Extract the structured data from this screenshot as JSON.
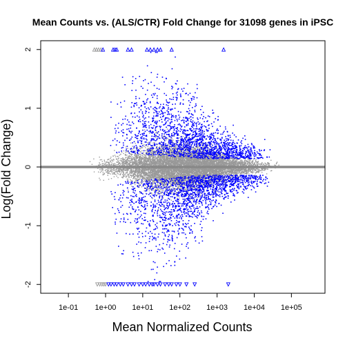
{
  "chart_data": {
    "type": "scatter",
    "title": "Mean Counts vs. (ALS/CTR) Fold Change for 31098 genes in iPSC",
    "xlabel": "Mean Normalized Counts",
    "ylabel": "Log(Fold Change)",
    "x_scale": "log10",
    "xlim": [
      0.018,
      800000
    ],
    "ylim": [
      -2.15,
      2.15
    ],
    "x_ticks": [
      {
        "value": 0.1,
        "label": "1e-01"
      },
      {
        "value": 1,
        "label": "1e+00"
      },
      {
        "value": 10,
        "label": "1e+01"
      },
      {
        "value": 100,
        "label": "1e+02"
      },
      {
        "value": 1000,
        "label": "1e+03"
      },
      {
        "value": 10000,
        "label": "1e+04"
      },
      {
        "value": 100000,
        "label": "1e+05"
      }
    ],
    "y_ticks": [
      {
        "value": -2,
        "label": "-2"
      },
      {
        "value": -1,
        "label": "-1"
      },
      {
        "value": 0,
        "label": "0"
      },
      {
        "value": 1,
        "label": "1"
      },
      {
        "value": 2,
        "label": "2"
      }
    ],
    "reference_line": {
      "y": 0,
      "color": "#888888"
    },
    "series": [
      {
        "role": "non-significant",
        "color": "#999999",
        "marker": "dot",
        "approx_count": 25000,
        "x_range": [
          0.05,
          400000
        ],
        "y_spread": "dense band around 0, widest (about ±0.4) near 10–1000 counts"
      },
      {
        "role": "significant",
        "color": "#0000ff",
        "marker": "dot",
        "approx_count": 6000,
        "x_range": [
          1,
          50000
        ],
        "y_range": [
          -2,
          2
        ],
        "y_spread": "two clouds above and below the gray band, magnitude about 0.3–1.5"
      }
    ],
    "clipped_points": [
      {
        "y": 2,
        "x": 0.5,
        "color": "#999999",
        "marker": "triangle-up"
      },
      {
        "y": 2,
        "x": 0.57,
        "color": "#999999",
        "marker": "triangle-up"
      },
      {
        "y": 2,
        "x": 0.65,
        "color": "#999999",
        "marker": "triangle-up"
      },
      {
        "y": 2,
        "x": 0.75,
        "color": "#999999",
        "marker": "triangle-up"
      },
      {
        "y": 2,
        "x": 0.85,
        "color": "#0000ff",
        "marker": "triangle-up"
      },
      {
        "y": 2,
        "x": 1.6,
        "color": "#0000ff",
        "marker": "triangle-up"
      },
      {
        "y": 2,
        "x": 1.8,
        "color": "#0000ff",
        "marker": "triangle-up"
      },
      {
        "y": 2,
        "x": 2.0,
        "color": "#0000ff",
        "marker": "triangle-up"
      },
      {
        "y": 2,
        "x": 4.0,
        "color": "#0000ff",
        "marker": "triangle-up"
      },
      {
        "y": 2,
        "x": 5.0,
        "color": "#0000ff",
        "marker": "triangle-up"
      },
      {
        "y": 2,
        "x": 13,
        "color": "#0000ff",
        "marker": "triangle-up"
      },
      {
        "y": 2,
        "x": 16,
        "color": "#0000ff",
        "marker": "triangle-up"
      },
      {
        "y": 2,
        "x": 20,
        "color": "#0000ff",
        "marker": "triangle-up"
      },
      {
        "y": 2,
        "x": 25,
        "color": "#0000ff",
        "marker": "triangle-up"
      },
      {
        "y": 2,
        "x": 30,
        "color": "#0000ff",
        "marker": "triangle-up"
      },
      {
        "y": 2,
        "x": 60,
        "color": "#0000ff",
        "marker": "triangle-up"
      },
      {
        "y": 2,
        "x": 1500,
        "color": "#0000ff",
        "marker": "triangle-up"
      },
      {
        "y": -2,
        "x": 0.6,
        "color": "#999999",
        "marker": "triangle-down"
      },
      {
        "y": -2,
        "x": 0.7,
        "color": "#999999",
        "marker": "triangle-down"
      },
      {
        "y": -2,
        "x": 0.8,
        "color": "#999999",
        "marker": "triangle-down"
      },
      {
        "y": -2,
        "x": 0.9,
        "color": "#999999",
        "marker": "triangle-down"
      },
      {
        "y": -2,
        "x": 1.0,
        "color": "#999999",
        "marker": "triangle-down"
      },
      {
        "y": -2,
        "x": 1.2,
        "color": "#0000ff",
        "marker": "triangle-down"
      },
      {
        "y": -2,
        "x": 1.4,
        "color": "#0000ff",
        "marker": "triangle-down"
      },
      {
        "y": -2,
        "x": 1.7,
        "color": "#0000ff",
        "marker": "triangle-down"
      },
      {
        "y": -2,
        "x": 2.0,
        "color": "#0000ff",
        "marker": "triangle-down"
      },
      {
        "y": -2,
        "x": 2.5,
        "color": "#0000ff",
        "marker": "triangle-down"
      },
      {
        "y": -2,
        "x": 3.0,
        "color": "#0000ff",
        "marker": "triangle-down"
      },
      {
        "y": -2,
        "x": 4.0,
        "color": "#0000ff",
        "marker": "triangle-down"
      },
      {
        "y": -2,
        "x": 5.0,
        "color": "#0000ff",
        "marker": "triangle-down"
      },
      {
        "y": -2,
        "x": 6.0,
        "color": "#0000ff",
        "marker": "triangle-down"
      },
      {
        "y": -2,
        "x": 8.0,
        "color": "#0000ff",
        "marker": "triangle-down"
      },
      {
        "y": -2,
        "x": 10,
        "color": "#0000ff",
        "marker": "triangle-down"
      },
      {
        "y": -2,
        "x": 12,
        "color": "#0000ff",
        "marker": "triangle-down"
      },
      {
        "y": -2,
        "x": 15,
        "color": "#0000ff",
        "marker": "triangle-down"
      },
      {
        "y": -2,
        "x": 18,
        "color": "#0000ff",
        "marker": "triangle-down"
      },
      {
        "y": -2,
        "x": 20,
        "color": "#0000ff",
        "marker": "triangle-down"
      },
      {
        "y": -2,
        "x": 25,
        "color": "#0000ff",
        "marker": "triangle-down"
      },
      {
        "y": -2,
        "x": 30,
        "color": "#0000ff",
        "marker": "triangle-down"
      },
      {
        "y": -2,
        "x": 40,
        "color": "#0000ff",
        "marker": "triangle-down"
      },
      {
        "y": -2,
        "x": 50,
        "color": "#0000ff",
        "marker": "triangle-down"
      },
      {
        "y": -2,
        "x": 60,
        "color": "#0000ff",
        "marker": "triangle-down"
      },
      {
        "y": -2,
        "x": 80,
        "color": "#0000ff",
        "marker": "triangle-down"
      },
      {
        "y": -2,
        "x": 100,
        "color": "#0000ff",
        "marker": "triangle-down"
      },
      {
        "y": -2,
        "x": 150,
        "color": "#0000ff",
        "marker": "triangle-down"
      },
      {
        "y": -2,
        "x": 250,
        "color": "#0000ff",
        "marker": "triangle-down"
      },
      {
        "y": -2,
        "x": 2000,
        "color": "#0000ff",
        "marker": "triangle-down"
      }
    ],
    "grid": false,
    "legend": "none"
  }
}
